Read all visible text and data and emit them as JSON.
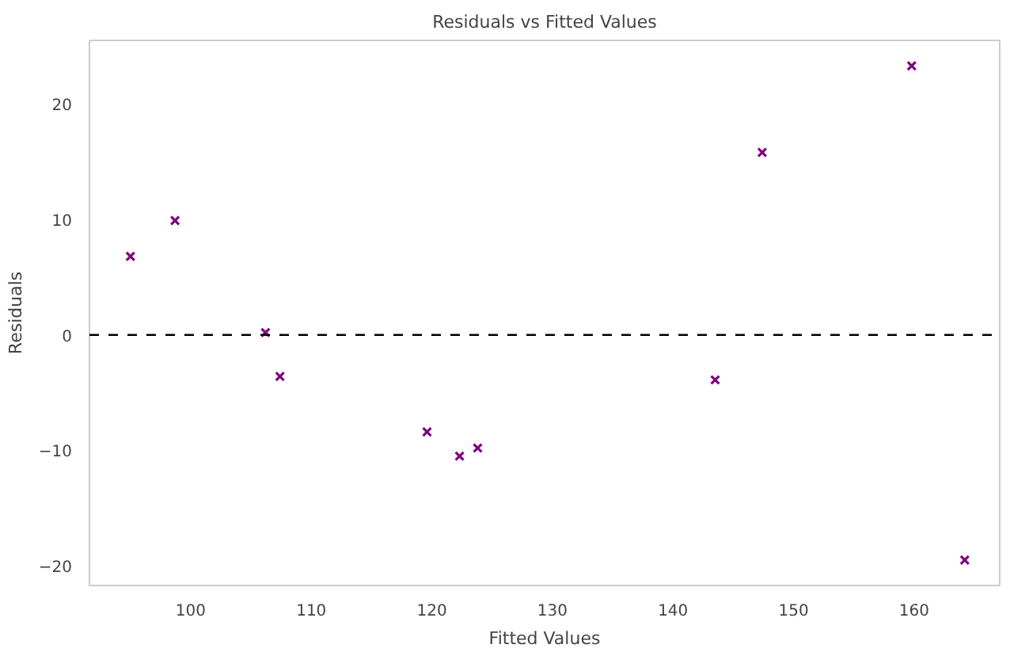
{
  "chart_data": {
    "type": "scatter",
    "title": "Residuals vs Fitted Values",
    "xlabel": "Fitted Values",
    "ylabel": "Residuals",
    "x": [
      95.0,
      98.7,
      106.2,
      107.4,
      119.6,
      122.3,
      123.8,
      143.5,
      147.4,
      159.8,
      164.2
    ],
    "series": [
      {
        "color": "#800080",
        "values": [
          6.8,
          9.9,
          0.2,
          -3.6,
          -8.4,
          -10.5,
          -9.8,
          -3.9,
          15.8,
          23.3,
          -19.5
        ]
      }
    ],
    "marker": "cross",
    "grid": false,
    "xlim": [
      91.6,
      167.1
    ],
    "ylim": [
      -21.7,
      25.5
    ],
    "xticks": [
      100,
      110,
      120,
      130,
      140,
      150,
      160
    ],
    "yticks": [
      -20,
      -10,
      0,
      10,
      20
    ],
    "ref_lines": [
      {
        "axis": "y",
        "value": 0,
        "label": null,
        "color": "#000000",
        "line_style": "dashed"
      }
    ]
  }
}
